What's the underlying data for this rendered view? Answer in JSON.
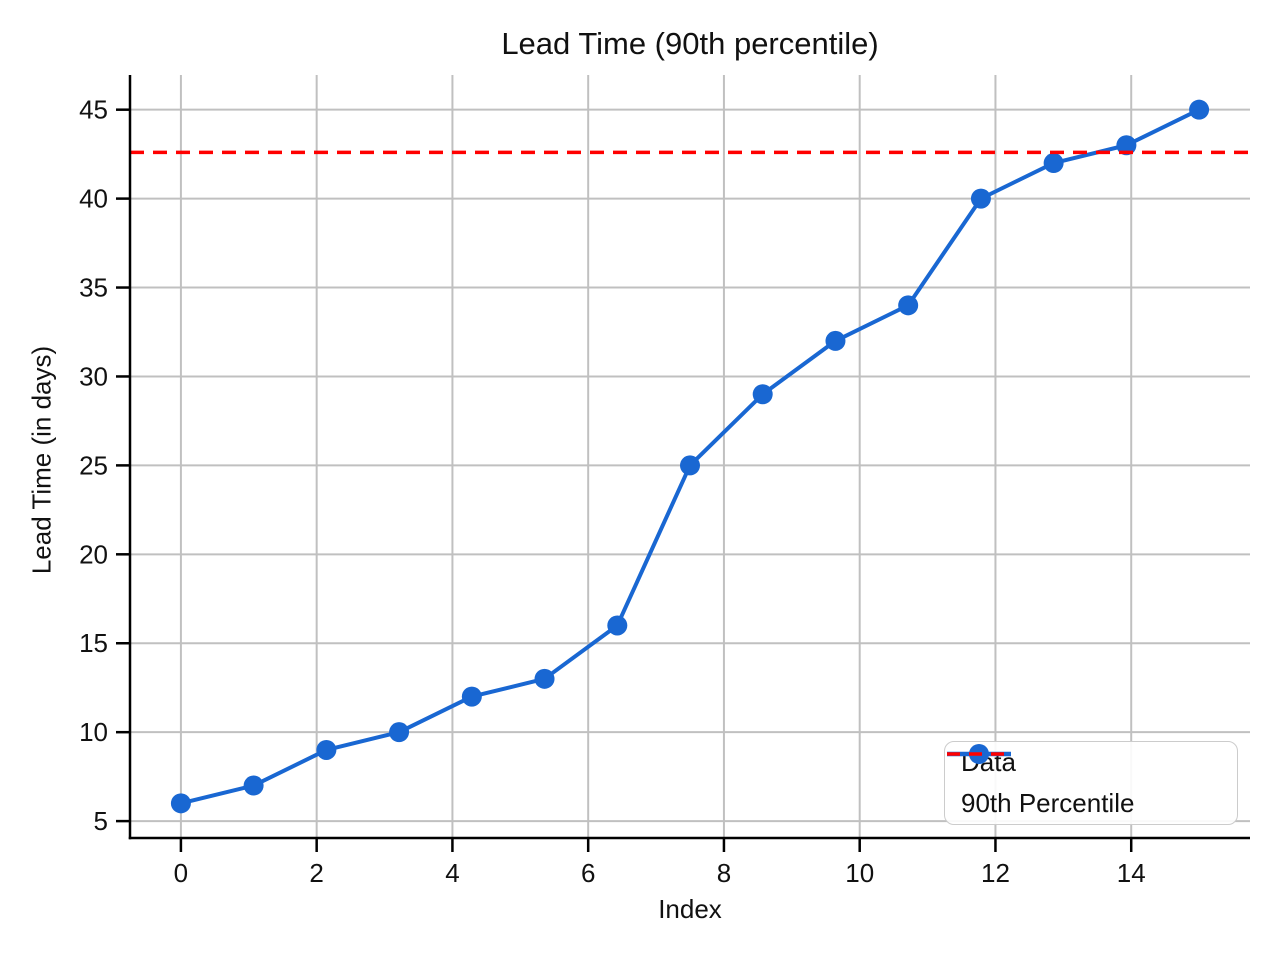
{
  "figure": {
    "title": "Lead Time (90th percentile)"
  },
  "chart_data": {
    "type": "line",
    "title": "Lead Time (90th percentile)",
    "xlabel": "Index",
    "ylabel": "Lead Time (in days)",
    "xlim": [
      -0.75,
      15.75
    ],
    "ylim": [
      4.05,
      46.95
    ],
    "x_ticks": [
      0,
      2,
      4,
      6,
      8,
      10,
      12,
      14
    ],
    "y_ticks": [
      5,
      10,
      15,
      20,
      25,
      30,
      35,
      40,
      45
    ],
    "grid": true,
    "legend_position": "lower right",
    "colors": {
      "data_series": "#1967d2",
      "percentile_line": "#ff0000",
      "grid": "#c0c0c0",
      "spines": "#000000"
    },
    "series": [
      {
        "name": "Data",
        "type": "line-markers",
        "color": "#1967d2",
        "x": [
          0,
          1.071,
          2.143,
          3.214,
          4.286,
          5.357,
          6.429,
          7.5,
          8.571,
          9.643,
          10.714,
          11.786,
          12.857,
          13.929,
          15
        ],
        "y": [
          6,
          7,
          9,
          10,
          12,
          13,
          16,
          25,
          29,
          32,
          34,
          40,
          42,
          43,
          45
        ]
      }
    ],
    "percentile_line": {
      "label": "90th Percentile",
      "value": 42.6,
      "color": "#ff0000",
      "style": "dashed"
    }
  }
}
